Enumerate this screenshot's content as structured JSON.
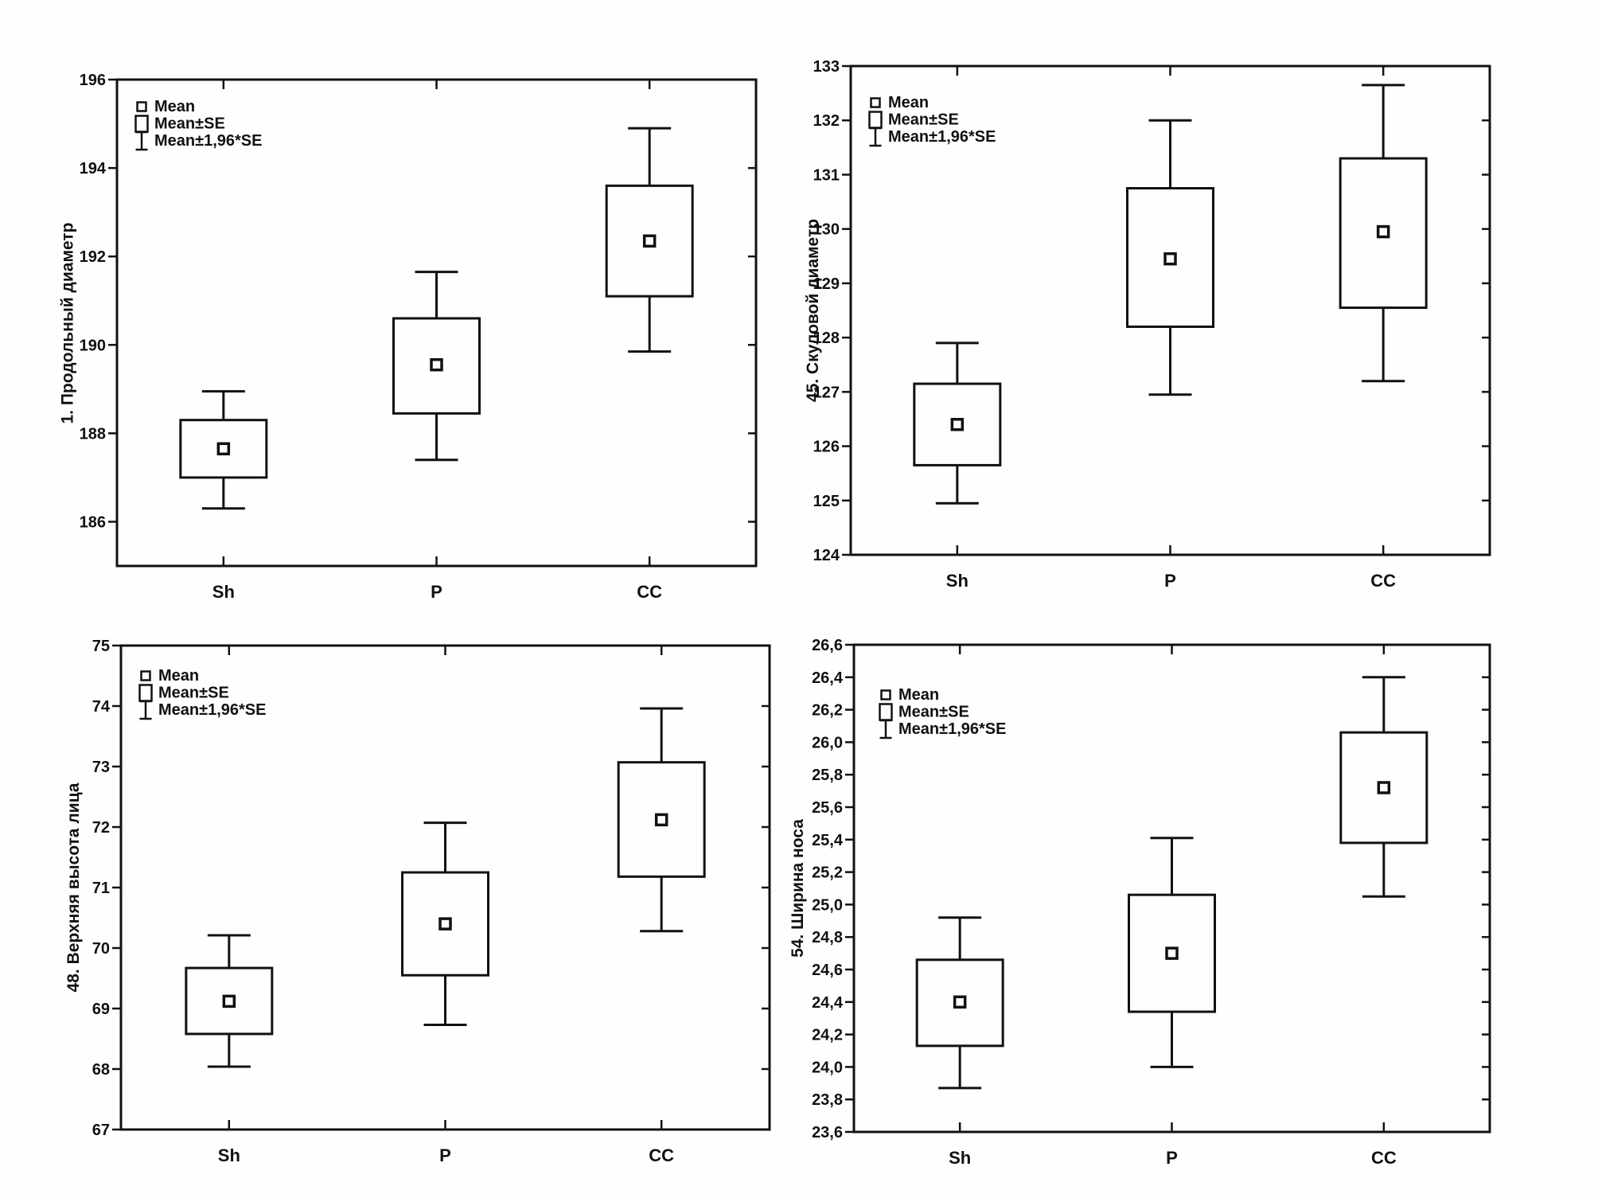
{
  "page": {
    "background": "#fffefd",
    "ink": "#111111"
  },
  "legend": {
    "items": [
      {
        "marker": "mean-square-icon",
        "label": "Mean"
      },
      {
        "marker": "se-box-icon",
        "label": "Mean±SE"
      },
      {
        "marker": "ci-whisker-icon",
        "label": "Mean±1,96*SE"
      }
    ]
  },
  "chart_data": [
    {
      "type": "boxplot",
      "variant": "mean-se-1.96se",
      "ylabel": "1. Продольный диаметр",
      "categories": [
        "Sh",
        "P",
        "CC"
      ],
      "ylim": [
        185,
        196
      ],
      "grid": false,
      "legend_position": "top-left-inside",
      "yticks": [
        {
          "v": 186,
          "label": "186"
        },
        {
          "v": 188,
          "label": "188"
        },
        {
          "v": 190,
          "label": "190"
        },
        {
          "v": 192,
          "label": "192"
        },
        {
          "v": 194,
          "label": "194"
        },
        {
          "v": 196,
          "label": "196"
        }
      ],
      "series": [
        {
          "category": "Sh",
          "mean": 187.65,
          "se_low": 187.0,
          "se_high": 188.3,
          "ci_low": 186.3,
          "ci_high": 188.95
        },
        {
          "category": "P",
          "mean": 189.55,
          "se_low": 188.45,
          "se_high": 190.6,
          "ci_low": 187.4,
          "ci_high": 191.65
        },
        {
          "category": "CC",
          "mean": 192.35,
          "se_low": 191.1,
          "se_high": 193.6,
          "ci_low": 189.85,
          "ci_high": 194.9
        }
      ]
    },
    {
      "type": "boxplot",
      "variant": "mean-se-1.96se",
      "ylabel": "45. Скуловой диаметр",
      "categories": [
        "Sh",
        "P",
        "CC"
      ],
      "ylim": [
        124,
        133
      ],
      "grid": false,
      "legend_position": "top-left-inside",
      "yticks": [
        {
          "v": 124,
          "label": "124"
        },
        {
          "v": 125,
          "label": "125"
        },
        {
          "v": 126,
          "label": "126"
        },
        {
          "v": 127,
          "label": "127"
        },
        {
          "v": 128,
          "label": "128"
        },
        {
          "v": 129,
          "label": "129"
        },
        {
          "v": 130,
          "label": "130"
        },
        {
          "v": 131,
          "label": "131"
        },
        {
          "v": 132,
          "label": "132"
        },
        {
          "v": 133,
          "label": "133"
        }
      ],
      "series": [
        {
          "category": "Sh",
          "mean": 126.4,
          "se_low": 125.65,
          "se_high": 127.15,
          "ci_low": 124.95,
          "ci_high": 127.9
        },
        {
          "category": "P",
          "mean": 129.45,
          "se_low": 128.2,
          "se_high": 130.75,
          "ci_low": 126.95,
          "ci_high": 132.0
        },
        {
          "category": "CC",
          "mean": 129.95,
          "se_low": 128.55,
          "se_high": 131.3,
          "ci_low": 127.2,
          "ci_high": 132.65
        }
      ]
    },
    {
      "type": "boxplot",
      "variant": "mean-se-1.96se",
      "ylabel": "48. Верхняя высота лица",
      "categories": [
        "Sh",
        "P",
        "CC"
      ],
      "ylim": [
        67,
        75
      ],
      "grid": false,
      "legend_position": "top-left-inside",
      "yticks": [
        {
          "v": 67,
          "label": "67"
        },
        {
          "v": 68,
          "label": "68"
        },
        {
          "v": 69,
          "label": "69"
        },
        {
          "v": 70,
          "label": "70"
        },
        {
          "v": 71,
          "label": "71"
        },
        {
          "v": 72,
          "label": "72"
        },
        {
          "v": 73,
          "label": "73"
        },
        {
          "v": 74,
          "label": "74"
        },
        {
          "v": 75,
          "label": "75"
        }
      ],
      "series": [
        {
          "category": "Sh",
          "mean": 69.12,
          "se_low": 68.58,
          "se_high": 69.67,
          "ci_low": 68.04,
          "ci_high": 70.21
        },
        {
          "category": "P",
          "mean": 70.4,
          "se_low": 69.55,
          "se_high": 71.25,
          "ci_low": 68.73,
          "ci_high": 72.07
        },
        {
          "category": "CC",
          "mean": 72.12,
          "se_low": 71.18,
          "se_high": 73.07,
          "ci_low": 70.28,
          "ci_high": 73.96
        }
      ]
    },
    {
      "type": "boxplot",
      "variant": "mean-se-1.96se",
      "ylabel": "54. Ширина носа",
      "categories": [
        "Sh",
        "P",
        "CC"
      ],
      "ylim": [
        23.6,
        26.6
      ],
      "grid": false,
      "legend_position": "top-left-inside",
      "yticks": [
        {
          "v": 23.6,
          "label": "23,6"
        },
        {
          "v": 23.8,
          "label": "23,8"
        },
        {
          "v": 24.0,
          "label": "24,0"
        },
        {
          "v": 24.2,
          "label": "24,2"
        },
        {
          "v": 24.4,
          "label": "24,4"
        },
        {
          "v": 24.6,
          "label": "24,6"
        },
        {
          "v": 24.8,
          "label": "24,8"
        },
        {
          "v": 25.0,
          "label": "25,0"
        },
        {
          "v": 25.2,
          "label": "25,2"
        },
        {
          "v": 25.4,
          "label": "25,4"
        },
        {
          "v": 25.6,
          "label": "25,6"
        },
        {
          "v": 25.8,
          "label": "25,8"
        },
        {
          "v": 26.0,
          "label": "26,0"
        },
        {
          "v": 26.2,
          "label": "26,2"
        },
        {
          "v": 26.4,
          "label": "26,4"
        },
        {
          "v": 26.6,
          "label": "26,6"
        }
      ],
      "series": [
        {
          "category": "Sh",
          "mean": 24.4,
          "se_low": 24.13,
          "se_high": 24.66,
          "ci_low": 23.87,
          "ci_high": 24.92
        },
        {
          "category": "P",
          "mean": 24.7,
          "se_low": 24.34,
          "se_high": 25.06,
          "ci_low": 24.0,
          "ci_high": 25.41
        },
        {
          "category": "CC",
          "mean": 25.72,
          "se_low": 25.38,
          "se_high": 26.06,
          "ci_low": 25.05,
          "ci_high": 26.4
        }
      ]
    }
  ]
}
